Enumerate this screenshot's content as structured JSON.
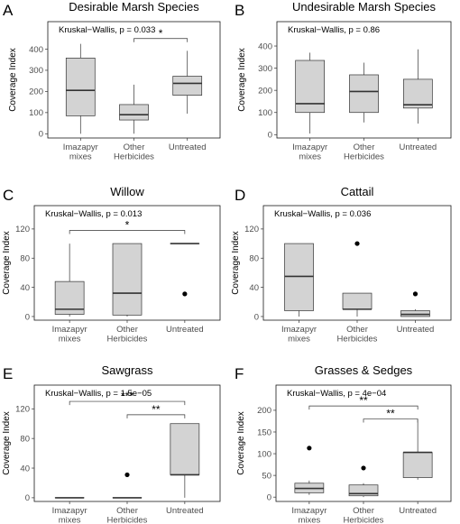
{
  "chart_data": [
    {
      "type": "box",
      "panel_letter": "A",
      "title": "Desirable Marsh Species",
      "stat_text": "Kruskal−Wallis, p = 0.033",
      "ylabel": "Coverage Index",
      "ylim": [
        -20,
        530
      ],
      "yticks": [
        0,
        100,
        200,
        300,
        400
      ],
      "categories": [
        [
          "Imazapyr",
          "mixes"
        ],
        [
          "Other",
          "Herbicides"
        ],
        [
          "Untreated"
        ]
      ],
      "boxes": [
        {
          "min": 0,
          "q1": 85,
          "median": 205,
          "q3": 358,
          "max": 425,
          "outliers": []
        },
        {
          "min": 0,
          "q1": 65,
          "median": 90,
          "q3": 138,
          "max": 232,
          "outliers": []
        },
        {
          "min": 95,
          "q1": 182,
          "median": 238,
          "q3": 272,
          "max": 392,
          "outliers": []
        }
      ],
      "comparisons": [
        {
          "from": 1,
          "to": 2,
          "label": "*",
          "y": 450
        }
      ],
      "box_color": "#d3d3d3"
    },
    {
      "type": "box",
      "panel_letter": "B",
      "title": "Undesirable Marsh Species",
      "stat_text": "Kruskal−Wallis, p = 0.86",
      "ylabel": "Coverage Index",
      "ylim": [
        -15,
        510
      ],
      "yticks": [
        0,
        100,
        200,
        300,
        400
      ],
      "categories": [
        [
          "Imazapyr",
          "mixes"
        ],
        [
          "Other",
          "Herbicides"
        ],
        [
          "Untreated"
        ]
      ],
      "boxes": [
        {
          "min": 5,
          "q1": 100,
          "median": 140,
          "q3": 335,
          "max": 370,
          "outliers": []
        },
        {
          "min": 55,
          "q1": 100,
          "median": 195,
          "q3": 270,
          "max": 325,
          "outliers": []
        },
        {
          "min": 50,
          "q1": 120,
          "median": 135,
          "q3": 250,
          "max": 385,
          "outliers": []
        }
      ],
      "comparisons": [],
      "box_color": "#d3d3d3"
    },
    {
      "type": "box",
      "panel_letter": "C",
      "title": "Willow",
      "stat_text": "Kruskal−Wallis, p = 0.013",
      "ylabel": "Coverage Index",
      "ylim": [
        -5,
        152
      ],
      "yticks": [
        0,
        40,
        80,
        120
      ],
      "categories": [
        [
          "Imazapyr",
          "mixes"
        ],
        [
          "Other",
          "Herbicides"
        ],
        [
          "Untreated"
        ]
      ],
      "boxes": [
        {
          "min": 0,
          "q1": 3,
          "median": 10,
          "q3": 48,
          "max": 100,
          "outliers": []
        },
        {
          "min": 0,
          "q1": 2,
          "median": 32,
          "q3": 100,
          "max": 100,
          "outliers": []
        },
        {
          "min": 100,
          "q1": 100,
          "median": 100,
          "q3": 100,
          "max": 100,
          "outliers": [
            31
          ]
        }
      ],
      "comparisons": [
        {
          "from": 0,
          "to": 2,
          "label": "*",
          "y": 118
        }
      ],
      "box_color": "#d3d3d3"
    },
    {
      "type": "box",
      "panel_letter": "D",
      "title": "Cattail",
      "stat_text": "Kruskal−Wallis, p = 0.036",
      "ylabel": "Coverage Index",
      "ylim": [
        -5,
        152
      ],
      "yticks": [
        0,
        40,
        80,
        120
      ],
      "categories": [
        [
          "Imazapyr",
          "mixes"
        ],
        [
          "Other",
          "Herbicides"
        ],
        [
          "Untreated"
        ]
      ],
      "boxes": [
        {
          "min": 0,
          "q1": 8,
          "median": 55,
          "q3": 100,
          "max": 100,
          "outliers": []
        },
        {
          "min": 0,
          "q1": 10,
          "median": 10,
          "q3": 32,
          "max": 32,
          "outliers": [
            100
          ]
        },
        {
          "min": 0,
          "q1": 0,
          "median": 3,
          "q3": 8,
          "max": 10,
          "outliers": [
            31
          ]
        }
      ],
      "comparisons": [],
      "box_color": "#d3d3d3"
    },
    {
      "type": "box",
      "panel_letter": "E",
      "title": "Sawgrass",
      "stat_text": "Kruskal−Wallis, p = 1.5e−05",
      "ylabel": "Coverage Index",
      "ylim": [
        -5,
        152
      ],
      "yticks": [
        0,
        40,
        80,
        120
      ],
      "categories": [
        [
          "Imazapyr",
          "mixes"
        ],
        [
          "Other",
          "Herbicides"
        ],
        [
          "Untreated"
        ]
      ],
      "boxes": [
        {
          "min": 0,
          "q1": 0,
          "median": 0,
          "q3": 0,
          "max": 0,
          "outliers": []
        },
        {
          "min": 0,
          "q1": 0,
          "median": 0,
          "q3": 0,
          "max": 0,
          "outliers": [
            31
          ]
        },
        {
          "min": 0,
          "q1": 31,
          "median": 31,
          "q3": 100,
          "max": 100,
          "outliers": []
        }
      ],
      "comparisons": [
        {
          "from": 0,
          "to": 2,
          "label": "***",
          "y": 130
        },
        {
          "from": 1,
          "to": 2,
          "label": "**",
          "y": 112
        }
      ],
      "box_color": "#d3d3d3"
    },
    {
      "type": "box",
      "panel_letter": "F",
      "title": "Grasses & Sedges",
      "stat_text": "Kruskal−Wallis, p = 4e−04",
      "ylabel": "Coverage Index",
      "ylim": [
        -10,
        258
      ],
      "yticks": [
        0,
        50,
        100,
        150,
        200
      ],
      "categories": [
        [
          "Imazapyr",
          "mixes"
        ],
        [
          "Other",
          "Herbicides"
        ],
        [
          "Untreated"
        ]
      ],
      "boxes": [
        {
          "min": 5,
          "q1": 10,
          "median": 20,
          "q3": 32,
          "max": 38,
          "outliers": [
            113
          ]
        },
        {
          "min": 0,
          "q1": 3,
          "median": 8,
          "q3": 28,
          "max": 32,
          "outliers": [
            67
          ]
        },
        {
          "min": 40,
          "q1": 45,
          "median": 103,
          "q3": 103,
          "max": 180,
          "outliers": []
        }
      ],
      "comparisons": [
        {
          "from": 0,
          "to": 2,
          "label": "**",
          "y": 210
        },
        {
          "from": 1,
          "to": 2,
          "label": "**",
          "y": 180
        }
      ],
      "box_color": "#d3d3d3"
    }
  ]
}
